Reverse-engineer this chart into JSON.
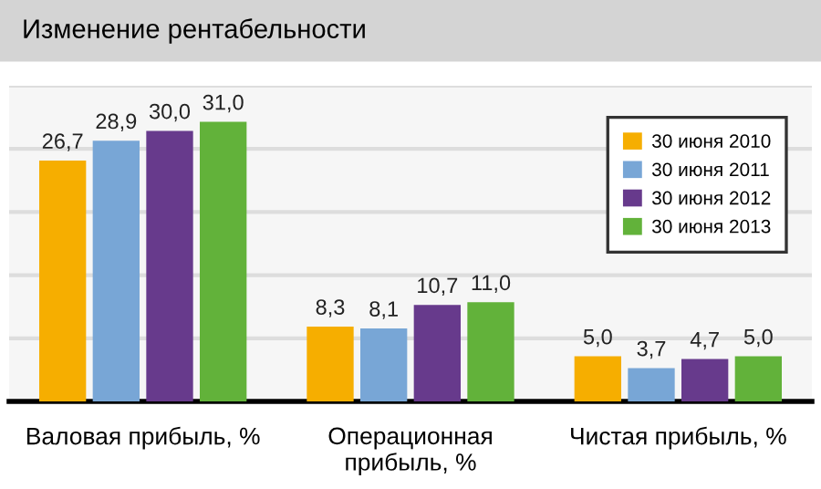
{
  "chart_data": {
    "type": "bar",
    "title": "Изменение рентабельности",
    "categories": [
      "Валовая прибыль, %",
      "Операционная\nприбыль, %",
      "Чистая прибыль, %"
    ],
    "series": [
      {
        "name": "30 июня 2010",
        "color": "#f6ae00",
        "values": [
          26.7,
          8.3,
          5.0
        ],
        "value_labels": [
          "26,7",
          "8,3",
          "5,0"
        ]
      },
      {
        "name": "30 июня 2011",
        "color": "#78a6d6",
        "values": [
          28.9,
          8.1,
          3.7
        ],
        "value_labels": [
          "28,9",
          "8,1",
          "3,7"
        ]
      },
      {
        "name": "30 июня 2012",
        "color": "#673a8c",
        "values": [
          30.0,
          10.7,
          4.7
        ],
        "value_labels": [
          "30,0",
          "10,7",
          "4,7"
        ]
      },
      {
        "name": "30 июня 2013",
        "color": "#62b23a",
        "values": [
          31.0,
          11.0,
          5.0
        ],
        "value_labels": [
          "31,0",
          "11,0",
          "5,0"
        ]
      }
    ],
    "ylim": [
      0,
      35
    ],
    "yticks": [
      {
        "value": 7,
        "label": null
      },
      {
        "value": 14,
        "label": null
      },
      {
        "value": 21,
        "label": null
      },
      {
        "value": 28,
        "label": null
      },
      {
        "value": 35,
        "label": null
      }
    ],
    "grid": "y",
    "legend": "top right",
    "tick_labels": "x"
  }
}
